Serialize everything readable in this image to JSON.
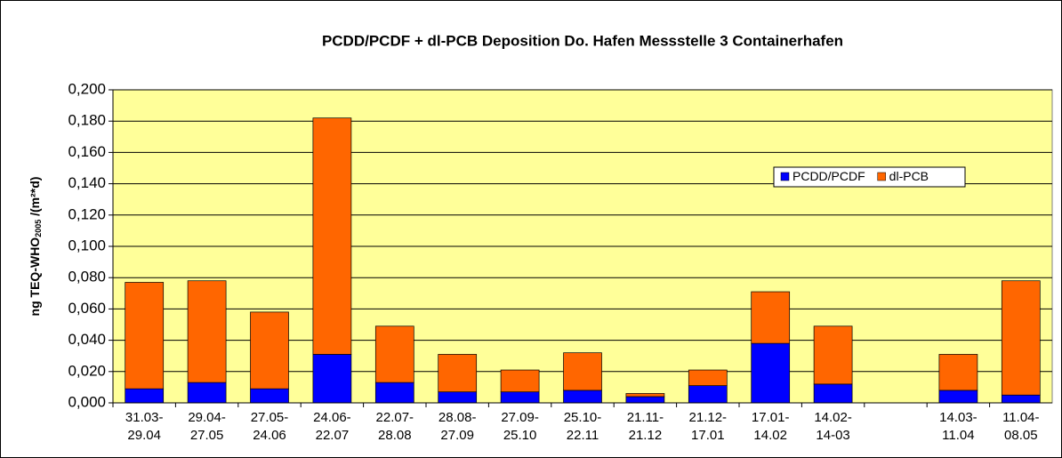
{
  "chart_data": {
    "type": "stacked_bar",
    "title": "PCDD/PCDF + dl-PCB  Deposition Do. Hafen Messstelle 3 Containerhafen",
    "y_label": {
      "text": "ng TEQ-WHO",
      "subscript": "2005",
      "suffix": " /(m²*d)"
    },
    "categories": [
      [
        "31.03-",
        "29.04"
      ],
      [
        "29.04-",
        "27.05"
      ],
      [
        "27.05-",
        "24.06"
      ],
      [
        "24.06-",
        "22.07"
      ],
      [
        "22.07-",
        "28.08"
      ],
      [
        "28.08-",
        "27.09"
      ],
      [
        "27.09-",
        "25.10"
      ],
      [
        "25.10-",
        "22.11"
      ],
      [
        "21.11-",
        "21.12"
      ],
      [
        "21.12-",
        "17.01"
      ],
      [
        "17.01-",
        "14.02"
      ],
      [
        "14.02-",
        "14-03"
      ],
      null,
      [
        "14.03-",
        "11.04"
      ],
      [
        "11.04-",
        "08.05"
      ]
    ],
    "series": [
      {
        "name": "PCDD/PCDF",
        "color": "#0000ff",
        "values": [
          0.009,
          0.013,
          0.009,
          0.031,
          0.013,
          0.007,
          0.007,
          0.008,
          0.004,
          0.011,
          0.038,
          0.012,
          null,
          0.008,
          0.005
        ]
      },
      {
        "name": "dl-PCB",
        "color": "#ff6600",
        "values": [
          0.068,
          0.065,
          0.049,
          0.151,
          0.036,
          0.024,
          0.014,
          0.024,
          0.002,
          0.01,
          0.033,
          0.037,
          null,
          0.023,
          0.073
        ]
      }
    ],
    "ylim": [
      0,
      0.2
    ],
    "yticks": [
      {
        "value": 0,
        "label": "0,000"
      },
      {
        "value": 0.02,
        "label": "0,020"
      },
      {
        "value": 0.04,
        "label": "0,040"
      },
      {
        "value": 0.06,
        "label": "0,060"
      },
      {
        "value": 0.08,
        "label": "0,080"
      },
      {
        "value": 0.1,
        "label": "0,100"
      },
      {
        "value": 0.12,
        "label": "0,120"
      },
      {
        "value": 0.14,
        "label": "0,140"
      },
      {
        "value": 0.16,
        "label": "0,160"
      },
      {
        "value": 0.18,
        "label": "0,180"
      },
      {
        "value": 0.2,
        "label": "0,200"
      }
    ],
    "grid": true,
    "background": "#ffff99",
    "legend": "upper right"
  }
}
